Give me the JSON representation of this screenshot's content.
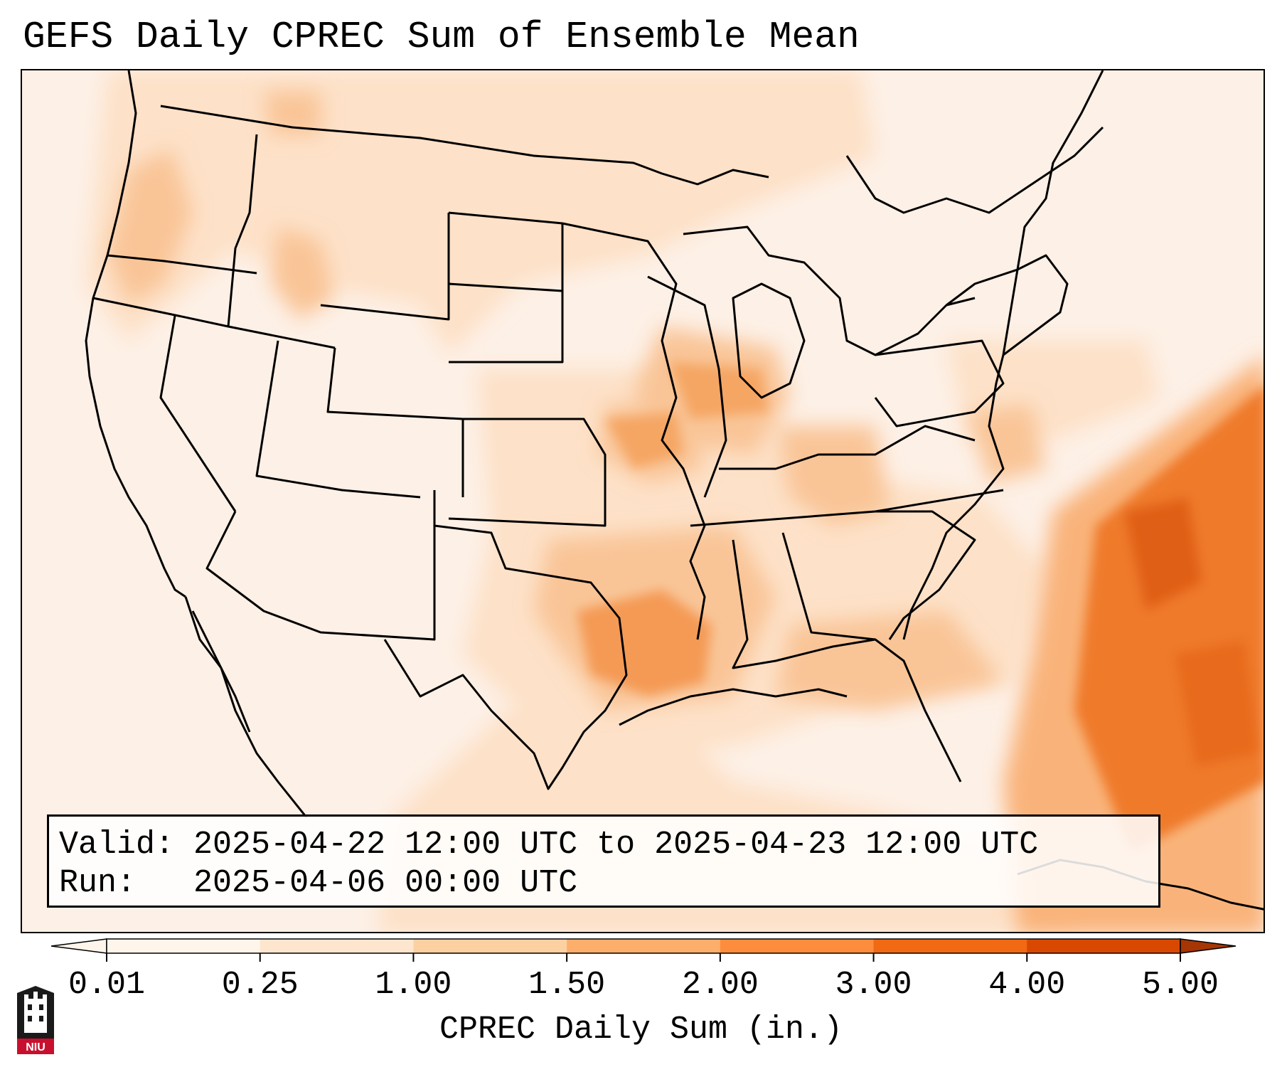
{
  "title": "GEFS Daily CPREC Sum of Ensemble Mean",
  "info": {
    "valid_label": "Valid:",
    "valid_value": "2025-04-22 12:00 UTC to 2025-04-23 12:00 UTC",
    "run_label": "Run:",
    "run_value": "2025-04-06 00:00 UTC"
  },
  "colorbar": {
    "label": "CPREC Daily Sum (in.)",
    "ticks": [
      "0.01",
      "0.25",
      "1.00",
      "1.50",
      "2.00",
      "3.00",
      "4.00",
      "5.00"
    ],
    "colors": [
      "#fff5eb",
      "#fee6ce",
      "#fdd0a2",
      "#fdae6b",
      "#fd8d3c",
      "#f16913",
      "#d94801",
      "#a63603"
    ],
    "extend": "both"
  },
  "logo": {
    "text": "NIU",
    "colors": {
      "red": "#c8102e",
      "black": "#1a1a1a"
    }
  },
  "map": {
    "region": "Contiguous United States",
    "background_color": "#fdf0e6",
    "precip_areas": [
      {
        "name": "Southern Plains / Oklahoma-Texas maximum",
        "color": "#f5a055"
      },
      {
        "name": "Iowa / Missouri band",
        "color": "#f7b47a"
      },
      {
        "name": "Western Atlantic offshore maximum",
        "color": "#e96a1c"
      },
      {
        "name": "Pacific Northwest",
        "color": "#f9c597"
      },
      {
        "name": "Gulf Coast / Southeast",
        "color": "#f9c597"
      }
    ]
  }
}
